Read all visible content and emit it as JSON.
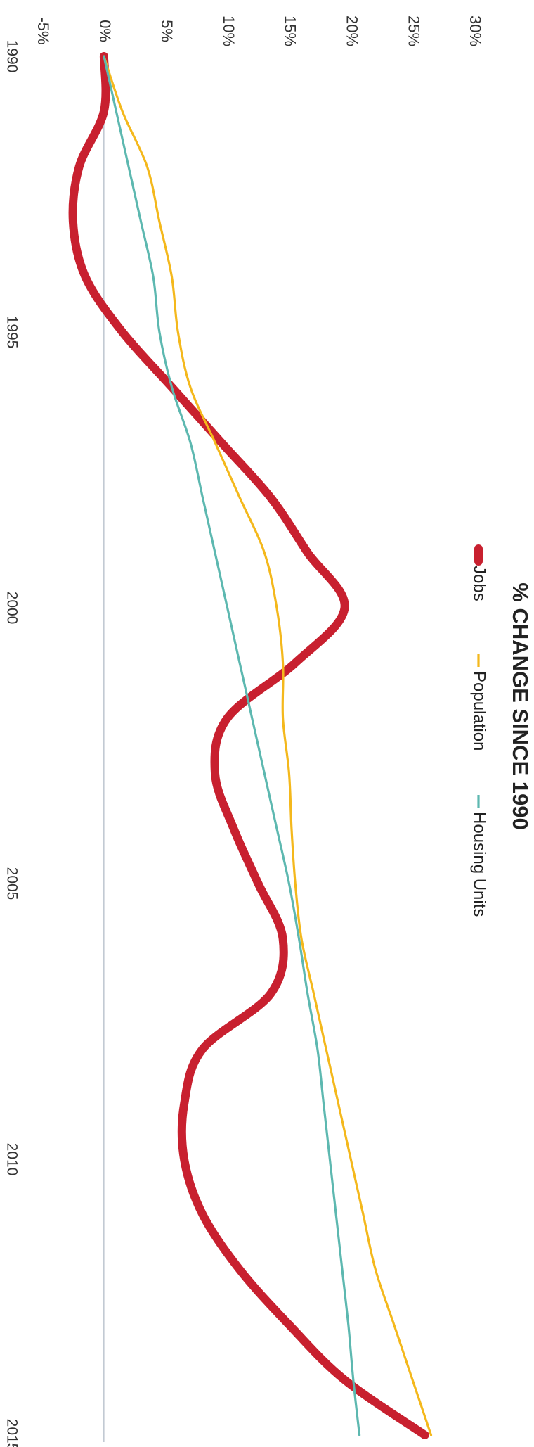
{
  "chart_data": {
    "type": "line",
    "orientation": "rotated-90-clockwise",
    "title": "% CHANGE SINCE 1990",
    "x": [
      1990,
      1991,
      1992,
      1993,
      1994,
      1995,
      1996,
      1997,
      1998,
      1999,
      2000,
      2001,
      2002,
      2003,
      2004,
      2005,
      2006,
      2007,
      2008,
      2009,
      2010,
      2011,
      2012,
      2013,
      2014,
      2015
    ],
    "xticks": [
      "1990",
      "1995",
      "2000",
      "2005",
      "2010",
      "2015"
    ],
    "yticks": [
      "-5%",
      "0%",
      "5%",
      "10%",
      "15%",
      "20%",
      "25%",
      "30%"
    ],
    "ylim": [
      -5,
      30
    ],
    "xlim": [
      1990,
      2015
    ],
    "zero_line": true,
    "legend_position": "top",
    "series": [
      {
        "name": "Jobs",
        "color": "#c8202f",
        "values": [
          0.0,
          0.0,
          -2.0,
          -2.5,
          -1.5,
          1.5,
          5.5,
          9.5,
          13.5,
          16.5,
          19.5,
          15.5,
          10.0,
          9.0,
          10.5,
          12.5,
          14.5,
          13.5,
          8.0,
          6.5,
          6.5,
          8.0,
          11.0,
          15.0,
          19.5,
          26.0
        ]
      },
      {
        "name": "Population",
        "color": "#f4b81c",
        "values": [
          0.0,
          1.5,
          3.5,
          4.5,
          5.5,
          6.0,
          7.0,
          9.0,
          11.0,
          13.0,
          14.0,
          14.5,
          14.5,
          15.0,
          15.2,
          15.5,
          16.0,
          17.0,
          18.0,
          19.0,
          20.0,
          21.0,
          22.0,
          23.5,
          25.0,
          26.5
        ]
      },
      {
        "name": "Housing Units",
        "color": "#5db8b0",
        "values": [
          0.0,
          1.0,
          2.0,
          3.0,
          4.0,
          4.5,
          5.5,
          7.0,
          8.0,
          9.0,
          10.0,
          11.0,
          12.0,
          13.0,
          14.0,
          15.0,
          15.8,
          16.5,
          17.3,
          17.8,
          18.3,
          18.8,
          19.3,
          19.8,
          20.2,
          20.7
        ]
      }
    ]
  }
}
